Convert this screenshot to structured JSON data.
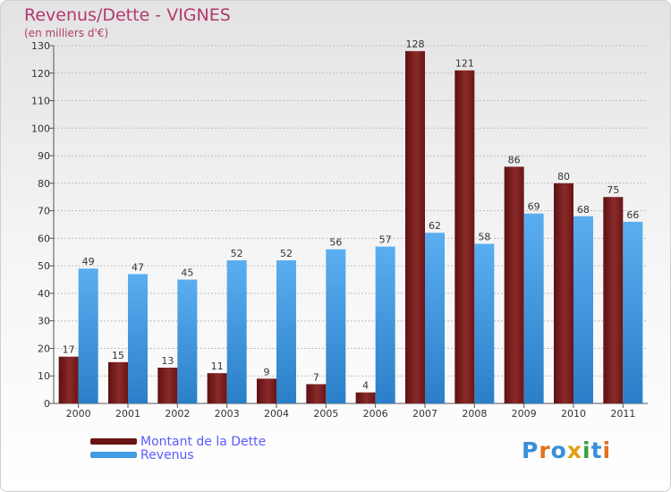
{
  "header": {
    "title": "Revenus/Dette - VIGNES",
    "subtitle": "(en milliers d'€)"
  },
  "legend": {
    "items": [
      {
        "label": "Montant de la Dette",
        "color": "#7a1a1a"
      },
      {
        "label": "Revenus",
        "color": "#3f9be3"
      }
    ]
  },
  "logo": {
    "text": "Proxiti",
    "letter_colors": [
      "#3a8fd8",
      "#e07020",
      "#3a8fd8",
      "#e0a010",
      "#3aa040",
      "#3a8fd8",
      "#e07020"
    ]
  },
  "colors": {
    "debt": "#7a1a1a",
    "revenue": "#3f9be3",
    "axis_text": "#333333",
    "title": "#b23a6e"
  },
  "chart_data": {
    "type": "bar",
    "title": "Revenus/Dette - VIGNES",
    "subtitle": "(en milliers d'€)",
    "categories": [
      "2000",
      "2001",
      "2002",
      "2003",
      "2004",
      "2005",
      "2006",
      "2007",
      "2008",
      "2009",
      "2010",
      "2011"
    ],
    "series": [
      {
        "name": "Montant de la Dette",
        "values": [
          17,
          15,
          13,
          11,
          9,
          7,
          4,
          128,
          121,
          86,
          80,
          75
        ]
      },
      {
        "name": "Revenus",
        "values": [
          49,
          47,
          45,
          52,
          52,
          56,
          57,
          62,
          58,
          69,
          68,
          66
        ]
      }
    ],
    "data_labels": [
      [
        "17",
        "15",
        "13",
        "11",
        "9",
        "7",
        "4",
        "128",
        "121",
        "86",
        "80",
        "75"
      ],
      [
        "49",
        "47",
        "45",
        "52",
        "52",
        "56",
        "57",
        "62",
        "58",
        "69",
        "68",
        "66"
      ]
    ],
    "y_ticks": [
      "0",
      "10",
      "20",
      "30",
      "40",
      "50",
      "60",
      "70",
      "80",
      "90",
      "100",
      "110",
      "120",
      "130"
    ],
    "ylim": [
      0,
      130
    ],
    "grid": true,
    "legend_position": "bottom-left"
  }
}
